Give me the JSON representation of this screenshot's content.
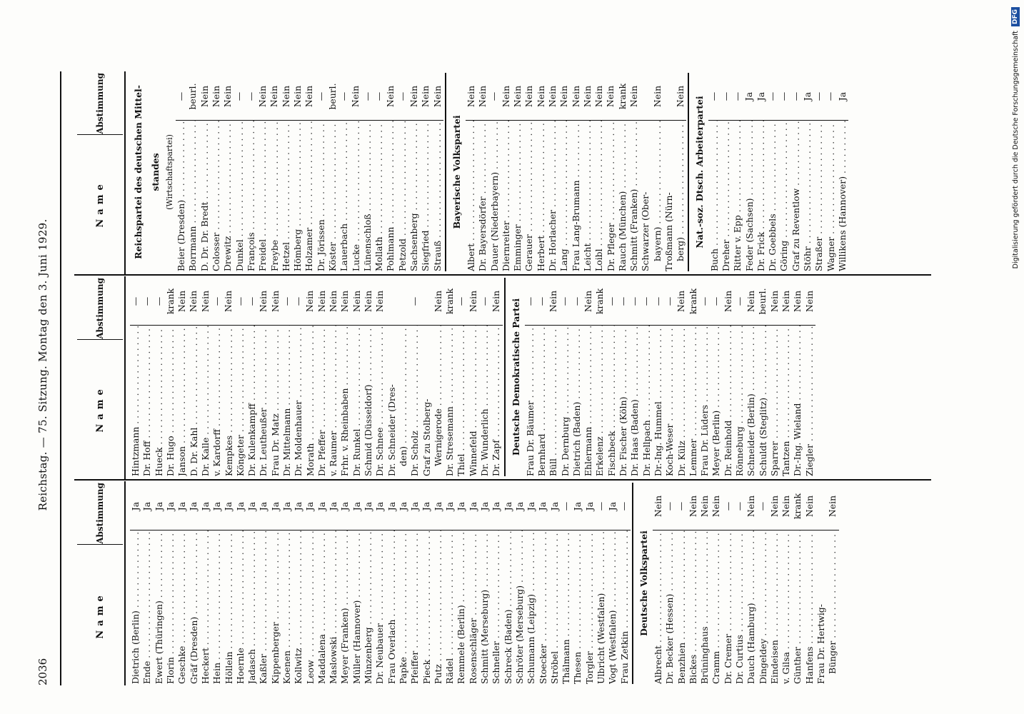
{
  "header": {
    "page_number": "2036",
    "title": "Reichstag. — 75. Sitzung. Montag den 3. Juni 1929."
  },
  "column_headers": {
    "name": "Name",
    "vote": "Abstimmung"
  },
  "columns": [
    {
      "rows": [
        {
          "t": "r",
          "n": "Dietrich (Berlin)",
          "v": "Ja"
        },
        {
          "t": "r",
          "n": "Ende",
          "v": "Ja"
        },
        {
          "t": "r",
          "n": "Ewert (Thüringen)",
          "v": "Ja"
        },
        {
          "t": "r",
          "n": "Florin",
          "v": "Ja"
        },
        {
          "t": "r",
          "n": "Geschke",
          "v": "Ja"
        },
        {
          "t": "r",
          "n": "Gräf (Dresden)",
          "v": "Ja"
        },
        {
          "t": "r",
          "n": "Heckert",
          "v": "Ja"
        },
        {
          "t": "r",
          "n": "Hein",
          "v": "Ja"
        },
        {
          "t": "r",
          "n": "Höllein",
          "v": "Ja"
        },
        {
          "t": "r",
          "n": "Hoernle",
          "v": "Ja"
        },
        {
          "t": "r",
          "n": "Jadasch",
          "v": "Ja"
        },
        {
          "t": "r",
          "n": "Kaßler",
          "v": "Ja"
        },
        {
          "t": "r",
          "n": "Kippenberger",
          "v": "Ja"
        },
        {
          "t": "r",
          "n": "Koenen",
          "v": "Ja"
        },
        {
          "t": "r",
          "n": "Kollwitz",
          "v": "Ja"
        },
        {
          "t": "r",
          "n": "Leow",
          "v": "Ja"
        },
        {
          "t": "r",
          "n": "Maddalena",
          "v": "Ja"
        },
        {
          "t": "r",
          "n": "Maslowski",
          "v": "Ja"
        },
        {
          "t": "r",
          "n": "Meyer (Franken)",
          "v": "Ja"
        },
        {
          "t": "r",
          "n": "Müller (Hannover)",
          "v": "Ja"
        },
        {
          "t": "r",
          "n": "Münzenberg",
          "v": "Ja"
        },
        {
          "t": "r",
          "n": "Dr. Neubauer",
          "v": "Ja"
        },
        {
          "t": "r",
          "n": "Frau Overlach",
          "v": "Ja"
        },
        {
          "t": "r",
          "n": "Papke",
          "v": "Ja"
        },
        {
          "t": "r",
          "n": "Pfeiffer",
          "v": "Ja"
        },
        {
          "t": "r",
          "n": "Pieck",
          "v": "Ja"
        },
        {
          "t": "r",
          "n": "Putz",
          "v": "Ja"
        },
        {
          "t": "r",
          "n": "Rädel",
          "v": "Ja"
        },
        {
          "t": "r",
          "n": "Remmele (Berlin)",
          "v": "Ja"
        },
        {
          "t": "r",
          "n": "Rosenschläger",
          "v": "Ja"
        },
        {
          "t": "r",
          "n": "Schmitt (Merseburg)",
          "v": "Ja"
        },
        {
          "t": "r",
          "n": "Schneller",
          "v": "Ja"
        },
        {
          "t": "r",
          "n": "Schreck (Baden)",
          "v": "Ja"
        },
        {
          "t": "r",
          "n": "Schröter (Merseburg)",
          "v": "Ja"
        },
        {
          "t": "r",
          "n": "Schumann (Leipzig)",
          "v": "Ja"
        },
        {
          "t": "r",
          "n": "Stoecker",
          "v": "Ja"
        },
        {
          "t": "r",
          "n": "Ströbel",
          "v": "Ja"
        },
        {
          "t": "r",
          "n": "Thälmann",
          "v": "—"
        },
        {
          "t": "r",
          "n": "Thesen",
          "v": "Ja"
        },
        {
          "t": "r",
          "n": "Torgler",
          "v": "Ja"
        },
        {
          "t": "r",
          "n": "Ulbricht (Westfalen)",
          "v": "—"
        },
        {
          "t": "r",
          "n": "Vogt (Westfalen)",
          "v": "Ja"
        },
        {
          "t": "r",
          "n": "Frau Zetkin",
          "v": "—"
        },
        {
          "t": "rule"
        },
        {
          "t": "p",
          "n": "Deutsche Volkspartei"
        },
        {
          "t": "r",
          "n": "Albrecht",
          "v": "Nein"
        },
        {
          "t": "r",
          "n": "Dr. Becker (Hessen)",
          "v": "—"
        },
        {
          "t": "r",
          "n": "Benzhien",
          "v": "—"
        },
        {
          "t": "r",
          "n": "Bickes",
          "v": "Nein"
        },
        {
          "t": "r",
          "n": "Brüninghaus",
          "v": "Nein"
        },
        {
          "t": "r",
          "n": "Cramm",
          "v": "Nein"
        },
        {
          "t": "r",
          "n": "Dr. Cremer",
          "v": "—"
        },
        {
          "t": "r",
          "n": "Dr. Curtius",
          "v": "—"
        },
        {
          "t": "r",
          "n": "Dauch (Hamburg)",
          "v": "Nein"
        },
        {
          "t": "r",
          "n": "Dingeldey",
          "v": "—"
        },
        {
          "t": "r",
          "n": "Eindeisen",
          "v": "Nein"
        },
        {
          "t": "r",
          "n": "v. Gilsa",
          "v": "Nein"
        },
        {
          "t": "r",
          "n": "Günther",
          "v": "krank"
        },
        {
          "t": "r",
          "n": "Hanfens",
          "v": "Nein"
        },
        {
          "t": "c",
          "n": "Frau Dr. Hertwig-"
        },
        {
          "t": "c2",
          "n": "Bünger",
          "v": "Nein"
        }
      ]
    },
    {
      "rows": [
        {
          "t": "r",
          "n": "Hintzmann",
          "v": "—"
        },
        {
          "t": "r",
          "n": "Dr. Hoff",
          "v": "—"
        },
        {
          "t": "r",
          "n": "Hueck",
          "v": "—"
        },
        {
          "t": "r",
          "n": "Dr. Hugo",
          "v": "krank"
        },
        {
          "t": "r",
          "n": "Janson",
          "v": "Nein"
        },
        {
          "t": "r",
          "n": "D. Dr. Kahl",
          "v": "Nein"
        },
        {
          "t": "r",
          "n": "Dr. Kalle",
          "v": "Nein"
        },
        {
          "t": "r",
          "n": "v. Kardorff",
          "v": "—"
        },
        {
          "t": "r",
          "n": "Kempkes",
          "v": "Nein"
        },
        {
          "t": "r",
          "n": "Köngeter",
          "v": "—"
        },
        {
          "t": "r",
          "n": "Dr. Kulenkampff",
          "v": "—"
        },
        {
          "t": "r",
          "n": "Dr. Leutheußer",
          "v": "Nein"
        },
        {
          "t": "r",
          "n": "Frau Dr. Matz",
          "v": "Nein"
        },
        {
          "t": "r",
          "n": "Dr. Mittelmann",
          "v": "—"
        },
        {
          "t": "r",
          "n": "Dr. Moldenhauer",
          "v": "—"
        },
        {
          "t": "r",
          "n": "Morath",
          "v": "Nein"
        },
        {
          "t": "r",
          "n": "Dr. Pfeffer",
          "v": "Nein"
        },
        {
          "t": "r",
          "n": "v. Raumer",
          "v": "Nein"
        },
        {
          "t": "r",
          "n": "Frhr. v. Rheinbaben",
          "v": "Nein"
        },
        {
          "t": "r",
          "n": "Dr. Runkel",
          "v": "Nein"
        },
        {
          "t": "r",
          "n": "Schmid (Düsseldorf)",
          "v": "Nein"
        },
        {
          "t": "r",
          "n": "Dr. Schnee",
          "v": "Nein"
        },
        {
          "t": "c",
          "n": "Dr. Schneider (Dres-"
        },
        {
          "t": "c2",
          "n": "den)",
          "v": ""
        },
        {
          "t": "r",
          "n": "Dr. Scholz",
          "v": "—"
        },
        {
          "t": "c",
          "n": "Graf zu Stolberg-"
        },
        {
          "t": "c2",
          "n": "Wernigerode",
          "v": "Nein"
        },
        {
          "t": "r",
          "n": "Dr. Stresemann",
          "v": "krank"
        },
        {
          "t": "r",
          "n": "Thiel",
          "v": "—"
        },
        {
          "t": "r",
          "n": "Winnefeld",
          "v": "Nein"
        },
        {
          "t": "r",
          "n": "Dr. Wunderlich",
          "v": "—"
        },
        {
          "t": "r",
          "n": "Dr. Zapf",
          "v": "Nein"
        },
        {
          "t": "rule"
        },
        {
          "t": "p",
          "n": "Deutsche Demokratische Partei"
        },
        {
          "t": "r",
          "n": "Frau Dr. Bäumer",
          "v": "—"
        },
        {
          "t": "r",
          "n": "Bernhard",
          "v": "—"
        },
        {
          "t": "r",
          "n": "Büll",
          "v": "Nein"
        },
        {
          "t": "r",
          "n": "Dr. Dernburg",
          "v": "—"
        },
        {
          "t": "r",
          "n": "Dietrich (Baden)",
          "v": "—"
        },
        {
          "t": "r",
          "n": "Ehlermann",
          "v": "Nein"
        },
        {
          "t": "r",
          "n": "Erkelenz",
          "v": "krank"
        },
        {
          "t": "r",
          "n": "Fischbeck",
          "v": "—"
        },
        {
          "t": "r",
          "n": "Dr. Fischer (Köln)",
          "v": "—"
        },
        {
          "t": "r",
          "n": "Dr. Haas (Baden)",
          "v": "—"
        },
        {
          "t": "r",
          "n": "Dr. Hellpach",
          "v": "—"
        },
        {
          "t": "r",
          "n": "Dr.-Ing. Hummel",
          "v": "—"
        },
        {
          "t": "r",
          "n": "Koch-Weser",
          "v": "—"
        },
        {
          "t": "r",
          "n": "Dr. Külz",
          "v": "Nein"
        },
        {
          "t": "r",
          "n": "Lemmer",
          "v": "krank"
        },
        {
          "t": "r",
          "n": "Frau Dr. Lüders",
          "v": "—"
        },
        {
          "t": "r",
          "n": "Meyer (Berlin)",
          "v": "—"
        },
        {
          "t": "r",
          "n": "Dr. Reinhold",
          "v": "Nein"
        },
        {
          "t": "r",
          "n": "Rönneburg",
          "v": "—"
        },
        {
          "t": "r",
          "n": "Schneider (Berlin)",
          "v": "Nein"
        },
        {
          "t": "r",
          "n": "Schuldt (Steglitz)",
          "v": "beurl."
        },
        {
          "t": "r",
          "n": "Sparrer",
          "v": "Nein"
        },
        {
          "t": "r",
          "n": "Tantzen",
          "v": "Nein"
        },
        {
          "t": "r",
          "n": "Dr.-Ing. Wieland",
          "v": "Nein"
        },
        {
          "t": "r",
          "n": "Ziegler",
          "v": "Nein"
        }
      ]
    },
    {
      "rows": [
        {
          "t": "p",
          "n": "Reichspartei des deutschen Mittel-"
        },
        {
          "t": "p",
          "n": "standes"
        },
        {
          "t": "s",
          "n": "(Wirtschaftspartei)"
        },
        {
          "t": "r",
          "n": "Beier (Dresden)",
          "v": "—"
        },
        {
          "t": "r",
          "n": "Borrmann",
          "v": "beurl."
        },
        {
          "t": "r",
          "n": "D. Dr. Dr. Bredt",
          "v": "Nein"
        },
        {
          "t": "r",
          "n": "Colosser",
          "v": "Nein"
        },
        {
          "t": "r",
          "n": "Drewitz",
          "v": "Nein"
        },
        {
          "t": "r",
          "n": "Dunkel",
          "v": "—"
        },
        {
          "t": "r",
          "n": "François",
          "v": "—"
        },
        {
          "t": "r",
          "n": "Freidel",
          "v": "Nein"
        },
        {
          "t": "r",
          "n": "Freybe",
          "v": "Nein"
        },
        {
          "t": "r",
          "n": "Hetzel",
          "v": "Nein"
        },
        {
          "t": "r",
          "n": "Hömberg",
          "v": "Nein"
        },
        {
          "t": "r",
          "n": "Holzamer",
          "v": "Nein"
        },
        {
          "t": "r",
          "n": "Dr. Jörissen",
          "v": "—"
        },
        {
          "t": "r",
          "n": "Köster",
          "v": "beurl."
        },
        {
          "t": "r",
          "n": "Lauerbach",
          "v": "—"
        },
        {
          "t": "r",
          "n": "Lucke",
          "v": "Nein"
        },
        {
          "t": "r",
          "n": "Lünenschloß",
          "v": "—"
        },
        {
          "t": "r",
          "n": "Mollath",
          "v": "—"
        },
        {
          "t": "r",
          "n": "Pohlmann",
          "v": "Nein"
        },
        {
          "t": "r",
          "n": "Petzold",
          "v": "—"
        },
        {
          "t": "r",
          "n": "Sachsenberg",
          "v": "Nein"
        },
        {
          "t": "r",
          "n": "Siegfried",
          "v": "Nein"
        },
        {
          "t": "r",
          "n": "Strauß",
          "v": "Nein"
        },
        {
          "t": "rule"
        },
        {
          "t": "p",
          "n": "Bayerische Volkspartei"
        },
        {
          "t": "r",
          "n": "Albert",
          "v": "Nein"
        },
        {
          "t": "r",
          "n": "Dr. Bayersdörfer",
          "v": "Nein"
        },
        {
          "t": "r",
          "n": "Dauer (Niederbayern)",
          "v": "—"
        },
        {
          "t": "r",
          "n": "Diernreiter",
          "v": "Nein"
        },
        {
          "t": "r",
          "n": "Emminger",
          "v": "Nein"
        },
        {
          "t": "r",
          "n": "Gerauer",
          "v": "Nein"
        },
        {
          "t": "r",
          "n": "Herbert",
          "v": "Nein"
        },
        {
          "t": "r",
          "n": "Dr. Horlacher",
          "v": "Nein"
        },
        {
          "t": "r",
          "n": "Lang",
          "v": "Nein"
        },
        {
          "t": "r",
          "n": "Frau Lang-Brumann",
          "v": "Nein"
        },
        {
          "t": "r",
          "n": "Leicht",
          "v": "Nein"
        },
        {
          "t": "r",
          "n": "Loibl",
          "v": "Nein"
        },
        {
          "t": "r",
          "n": "Dr. Pfleger",
          "v": "Nein"
        },
        {
          "t": "r",
          "n": "Rauch (München)",
          "v": "krank"
        },
        {
          "t": "r",
          "n": "Schmitt (Franken)",
          "v": "Nein"
        },
        {
          "t": "c",
          "n": "Schwarzer (Ober-"
        },
        {
          "t": "c2",
          "n": "bayern)",
          "v": "Nein"
        },
        {
          "t": "c",
          "n": "Troßmann (Nürn-"
        },
        {
          "t": "c2",
          "n": "berg)",
          "v": "Nein"
        },
        {
          "t": "rule"
        },
        {
          "t": "p",
          "n": "Nat.-soz. Dtsch. Arbeiterpartei"
        },
        {
          "t": "r",
          "n": "Buch",
          "v": "—"
        },
        {
          "t": "r",
          "n": "Dreher",
          "v": "—"
        },
        {
          "t": "r",
          "n": "Ritter v. Epp",
          "v": "—"
        },
        {
          "t": "r",
          "n": "Feder (Sachsen)",
          "v": "Ja"
        },
        {
          "t": "r",
          "n": "Dr. Frick",
          "v": "Ja"
        },
        {
          "t": "r",
          "n": "Dr. Goebbels",
          "v": "—"
        },
        {
          "t": "r",
          "n": "Göring",
          "v": "—"
        },
        {
          "t": "r",
          "n": "Graf zu Reventlow",
          "v": "—"
        },
        {
          "t": "r",
          "n": "Stöhr",
          "v": "Ja"
        },
        {
          "t": "r",
          "n": "Straßer",
          "v": "—"
        },
        {
          "t": "r",
          "n": "Wagner",
          "v": "—"
        },
        {
          "t": "r",
          "n": "Willikens (Hannover)",
          "v": "Ja"
        }
      ]
    }
  ],
  "watermark": {
    "text": "Digitalisierung gefördert durch die Deutsche Forschungsgemeinschaft",
    "logo": "DFG"
  }
}
